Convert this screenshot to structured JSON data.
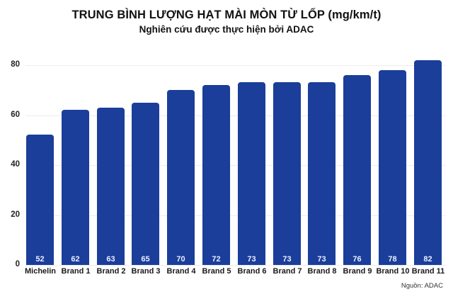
{
  "header": {
    "title": "TRUNG BÌNH LƯỢNG HẠT MÀI MÒN TỪ LỐP (mg/km/t)",
    "subtitle": "Nghiên cứu được thực hiện bởi ADAC"
  },
  "footer": {
    "source": "Nguồn: ADAC"
  },
  "colors": {
    "bar": "#1a3e9a",
    "bar_label": "#e8eeff",
    "gridline": "#ececec"
  },
  "y_ticks": [
    "0",
    "20",
    "40",
    "60",
    "80"
  ],
  "bars": [
    {
      "label": "Michelin",
      "value": "52"
    },
    {
      "label": "Brand 1",
      "value": "62"
    },
    {
      "label": "Brand 2",
      "value": "63"
    },
    {
      "label": "Brand 3",
      "value": "65"
    },
    {
      "label": "Brand 4",
      "value": "70"
    },
    {
      "label": "Brand 5",
      "value": "72"
    },
    {
      "label": "Brand 6",
      "value": "73"
    },
    {
      "label": "Brand 7",
      "value": "73"
    },
    {
      "label": "Brand 8",
      "value": "73"
    },
    {
      "label": "Brand 9",
      "value": "76"
    },
    {
      "label": "Brand 10",
      "value": "78"
    },
    {
      "label": "Brand 11",
      "value": "82"
    }
  ],
  "chart_data": {
    "type": "bar",
    "title": "TRUNG BÌNH LƯỢNG HẠT MÀI MÒN TỪ LỐP (mg/km/t)",
    "subtitle": "Nghiên cứu được thực hiện bởi ADAC",
    "categories": [
      "Michelin",
      "Brand 1",
      "Brand 2",
      "Brand 3",
      "Brand 4",
      "Brand 5",
      "Brand 6",
      "Brand 7",
      "Brand 8",
      "Brand 9",
      "Brand 10",
      "Brand 11"
    ],
    "values": [
      52,
      62,
      63,
      65,
      70,
      72,
      73,
      73,
      73,
      76,
      78,
      82
    ],
    "xlabel": "",
    "ylabel": "",
    "ylim": [
      0,
      85
    ],
    "yticks": [
      0,
      20,
      40,
      60,
      80
    ],
    "grid": true,
    "legend": "none",
    "data_labels": "inside-bottom",
    "source": "Nguồn: ADAC"
  }
}
